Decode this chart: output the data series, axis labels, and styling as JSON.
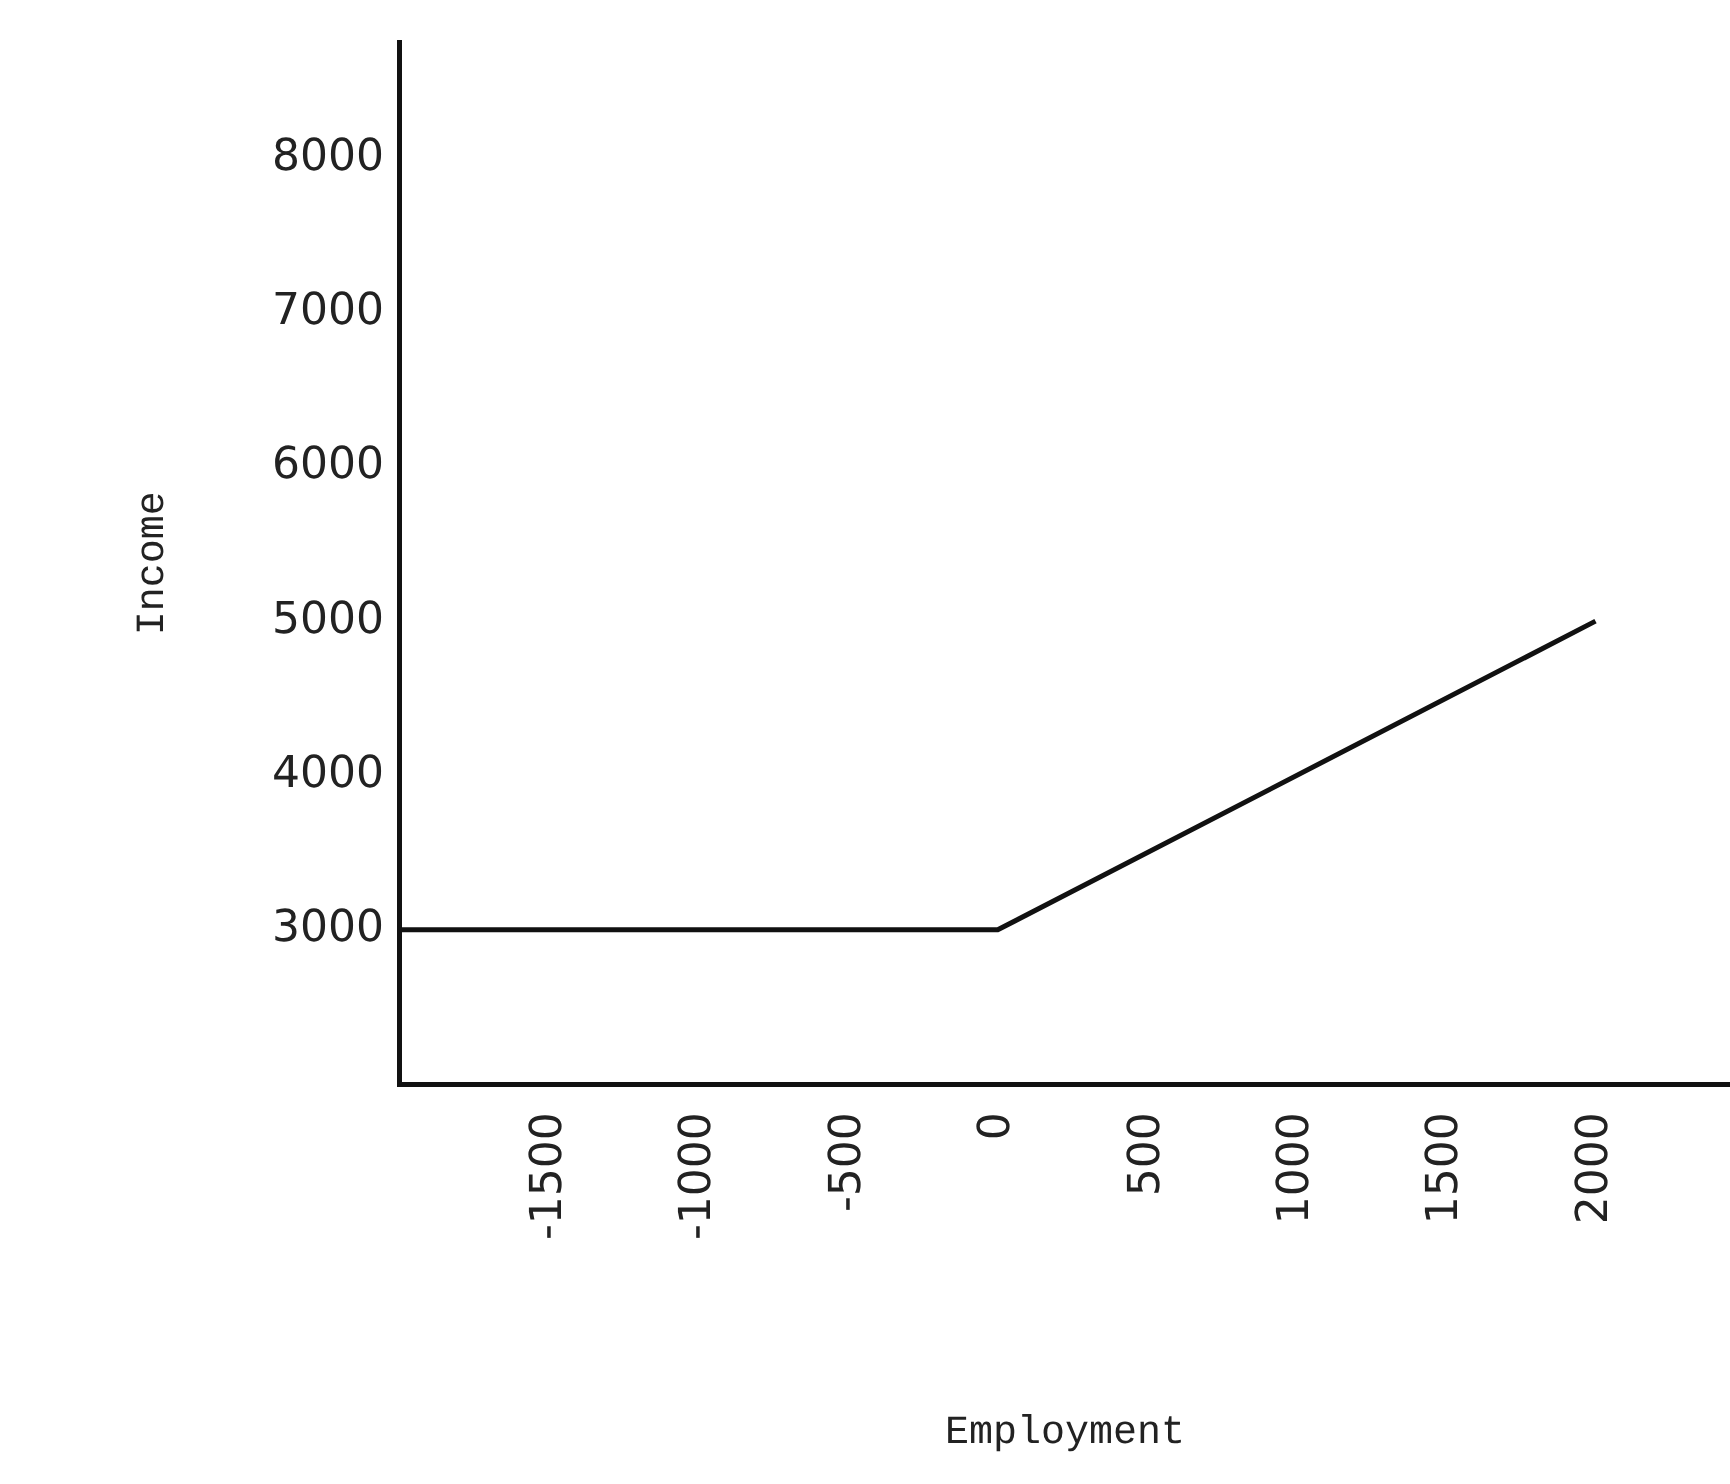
{
  "chart_data": {
    "type": "line",
    "xlabel": "Employment",
    "ylabel": "Income",
    "x": [
      -2000,
      0,
      2000
    ],
    "series": [
      {
        "color": "#111111",
        "values": [
          3000,
          3000,
          5000
        ]
      }
    ],
    "xlim": [
      -2000,
      2450
    ],
    "xticks": [
      -1500,
      -1000,
      -500,
      0,
      500,
      1000,
      1500,
      2000
    ],
    "ylim": [
      2000,
      8750
    ],
    "yticks": [
      3000,
      4000,
      5000,
      6000,
      7000,
      8000
    ],
    "grid": false,
    "legend": false,
    "marker": "none",
    "line_style": "solid"
  }
}
